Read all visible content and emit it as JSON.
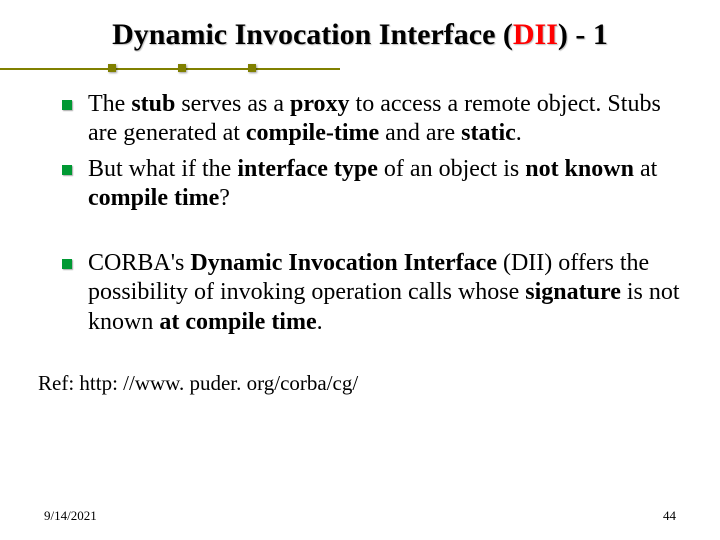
{
  "title": {
    "pre": "Dynamic Invocation Interface (",
    "dii": "DII",
    "post": ") - 1"
  },
  "deco": {
    "line_color": "#808000",
    "square_color": "#808000",
    "squares_x": [
      108,
      178,
      248
    ]
  },
  "bullets": [
    {
      "segments": [
        {
          "t": "The ",
          "b": false
        },
        {
          "t": "stub",
          "b": true
        },
        {
          "t": " serves as a ",
          "b": false
        },
        {
          "t": "proxy",
          "b": true
        },
        {
          "t": " to access a remote object. Stubs are generated at ",
          "b": false
        },
        {
          "t": "compile-time",
          "b": true
        },
        {
          "t": " and are ",
          "b": false
        },
        {
          "t": "static",
          "b": true
        },
        {
          "t": ".",
          "b": false
        }
      ],
      "gap": false
    },
    {
      "segments": [
        {
          "t": "But what if the ",
          "b": false
        },
        {
          "t": "interface type",
          "b": true
        },
        {
          "t": " of an object is ",
          "b": false
        },
        {
          "t": "not known",
          "b": true
        },
        {
          "t": " at ",
          "b": false
        },
        {
          "t": "compile time",
          "b": true
        },
        {
          "t": "?",
          "b": false
        }
      ],
      "gap": false
    },
    {
      "segments": [
        {
          "t": "CORBA's ",
          "b": false
        },
        {
          "t": "Dynamic Invocation Interface",
          "b": true
        },
        {
          "t": " (DII) offers the possibility of invoking operation calls whose ",
          "b": false
        },
        {
          "t": "signature",
          "b": true
        },
        {
          "t": " is not known ",
          "b": false
        },
        {
          "t": "at compile time",
          "b": true
        },
        {
          "t": ".",
          "b": false
        }
      ],
      "gap": true
    }
  ],
  "ref": "Ref: http: //www. puder. org/corba/cg/",
  "footer": {
    "date": "9/14/2021",
    "page": "44"
  },
  "colors": {
    "bullet": "#009933",
    "dii": "#ff0000",
    "text": "#000000",
    "background": "#ffffff"
  },
  "fonts": {
    "title_size_pt": 30,
    "body_size_pt": 24,
    "ref_size_pt": 21,
    "footer_size_pt": 13,
    "family": "Times New Roman"
  }
}
